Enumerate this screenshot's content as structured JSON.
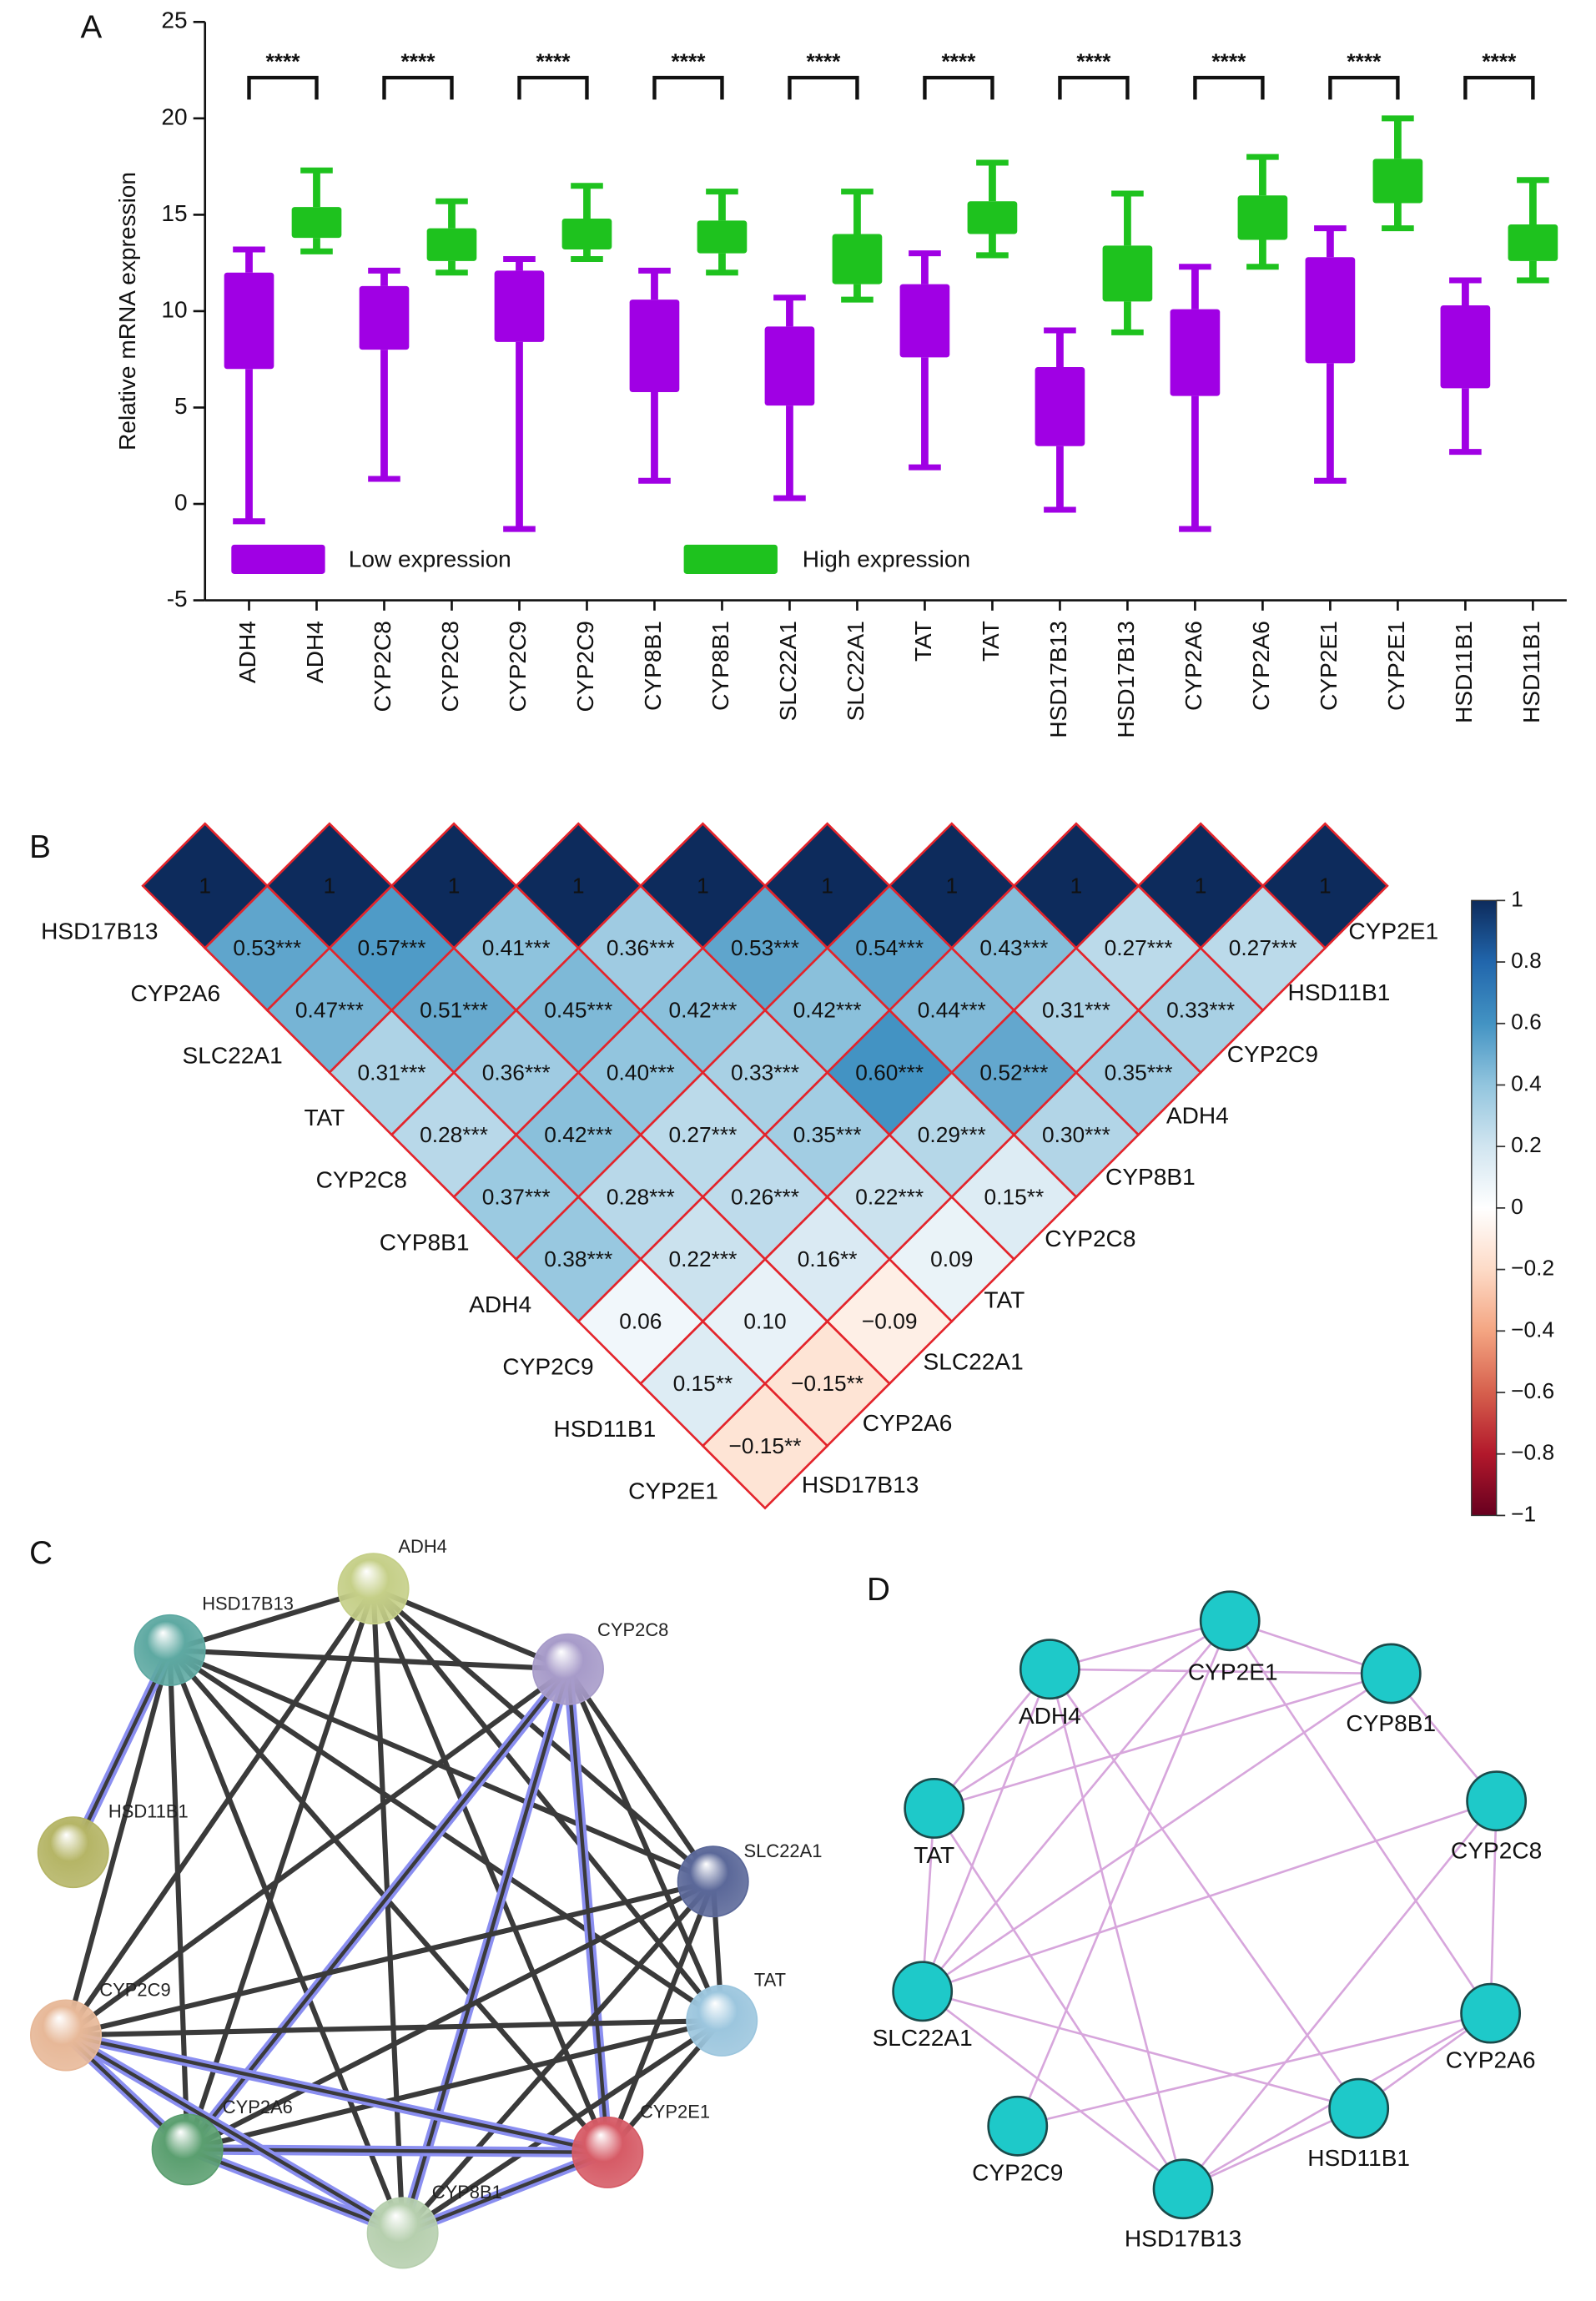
{
  "chart_data": [
    {
      "type": "box",
      "panel": "A",
      "ylabel": "Relative mRNA expression",
      "categories": [
        "ADH4",
        "ADH4",
        "CYP2C8",
        "CYP2C8",
        "CYP2C9",
        "CYP2C9",
        "CYP8B1",
        "CYP8B1",
        "SLC22A1",
        "SLC22A1",
        "TAT",
        "TAT",
        "HSD17B13",
        "HSD17B13",
        "CYP2A6",
        "CYP2A6",
        "CYP2E1",
        "CYP2E1",
        "HSD11B1",
        "HSD11B1"
      ],
      "boxes": [
        {
          "min": -0.9,
          "q1": 7.0,
          "q3": 12.0,
          "max": 13.2
        },
        {
          "min": 13.1,
          "q1": 13.8,
          "q3": 15.4,
          "max": 17.3
        },
        {
          "min": 1.3,
          "q1": 8.0,
          "q3": 11.3,
          "max": 12.1
        },
        {
          "min": 12.0,
          "q1": 12.6,
          "q3": 14.3,
          "max": 15.7
        },
        {
          "min": -1.3,
          "q1": 8.4,
          "q3": 12.1,
          "max": 12.7
        },
        {
          "min": 12.7,
          "q1": 13.2,
          "q3": 14.8,
          "max": 16.5
        },
        {
          "min": 1.2,
          "q1": 5.8,
          "q3": 10.6,
          "max": 12.1
        },
        {
          "min": 12.0,
          "q1": 13.0,
          "q3": 14.7,
          "max": 16.2
        },
        {
          "min": 0.3,
          "q1": 5.1,
          "q3": 9.2,
          "max": 10.7
        },
        {
          "min": 10.6,
          "q1": 11.4,
          "q3": 14.0,
          "max": 16.2
        },
        {
          "min": 1.9,
          "q1": 7.6,
          "q3": 11.4,
          "max": 13.0
        },
        {
          "min": 12.9,
          "q1": 14.0,
          "q3": 15.7,
          "max": 17.7
        },
        {
          "min": -0.3,
          "q1": 3.0,
          "q3": 7.1,
          "max": 9.0
        },
        {
          "min": 8.9,
          "q1": 10.5,
          "q3": 13.4,
          "max": 16.1
        },
        {
          "min": -1.3,
          "q1": 5.6,
          "q3": 10.1,
          "max": 12.3
        },
        {
          "min": 12.3,
          "q1": 13.7,
          "q3": 16.0,
          "max": 18.0
        },
        {
          "min": 1.2,
          "q1": 7.3,
          "q3": 12.8,
          "max": 14.3
        },
        {
          "min": 14.3,
          "q1": 15.6,
          "q3": 17.9,
          "max": 20.0
        },
        {
          "min": 2.7,
          "q1": 6.0,
          "q3": 10.3,
          "max": 11.6
        },
        {
          "min": 11.6,
          "q1": 12.6,
          "q3": 14.5,
          "max": 16.8
        }
      ],
      "series": [
        {
          "name": "Low expression",
          "color": "#a000e4"
        },
        {
          "name": "High expression",
          "color": "#1ec21e"
        }
      ],
      "annotations": [
        "****",
        "****",
        "****",
        "****",
        "****",
        "****",
        "****",
        "****",
        "****",
        "****"
      ],
      "ylim": [
        -5,
        25
      ],
      "yticks": [
        -5,
        0,
        5,
        10,
        15,
        20,
        25
      ]
    },
    {
      "type": "heatmap",
      "panel": "B",
      "row_labels": [
        "HSD17B13",
        "CYP2A6",
        "SLC22A1",
        "TAT",
        "CYP2C8",
        "CYP8B1",
        "ADH4",
        "CYP2C9",
        "HSD11B1",
        "CYP2E1"
      ],
      "column_labels": [
        "CYP2E1",
        "HSD11B1",
        "CYP2C9",
        "ADH4",
        "CYP8B1",
        "CYP2C8",
        "TAT",
        "SLC22A1",
        "CYP2A6",
        "HSD17B13"
      ],
      "values": [
        [
          1,
          1,
          1,
          1,
          1,
          1,
          1,
          1,
          1,
          1
        ],
        [
          0.53,
          0.57,
          0.41,
          0.36,
          0.53,
          0.54,
          0.43,
          0.27,
          0.27
        ],
        [
          0.47,
          0.51,
          0.45,
          0.42,
          0.42,
          0.44,
          0.31,
          0.33
        ],
        [
          0.31,
          0.36,
          0.4,
          0.33,
          0.6,
          0.52,
          0.35
        ],
        [
          0.28,
          0.42,
          0.27,
          0.35,
          0.29,
          0.3
        ],
        [
          0.37,
          0.28,
          0.26,
          0.22,
          0.15
        ],
        [
          0.38,
          0.22,
          0.16,
          0.09
        ],
        [
          0.06,
          0.1,
          -0.09
        ],
        [
          0.15,
          -0.15
        ],
        [
          -0.15
        ]
      ],
      "value_labels": [
        [
          "1",
          "1",
          "1",
          "1",
          "1",
          "1",
          "1",
          "1",
          "1",
          "1"
        ],
        [
          "0.53***",
          "0.57***",
          "0.41***",
          "0.36***",
          "0.53***",
          "0.54***",
          "0.43***",
          "0.27***",
          "0.27***"
        ],
        [
          "0.47***",
          "0.51***",
          "0.45***",
          "0.42***",
          "0.42***",
          "0.44***",
          "0.31***",
          "0.33***"
        ],
        [
          "0.31***",
          "0.36***",
          "0.40***",
          "0.33***",
          "0.60***",
          "0.52***",
          "0.35***"
        ],
        [
          "0.28***",
          "0.42***",
          "0.27***",
          "0.35***",
          "0.29***",
          "0.30***"
        ],
        [
          "0.37***",
          "0.28***",
          "0.26***",
          "0.22***",
          "0.15**"
        ],
        [
          "0.38***",
          "0.22***",
          "0.16**",
          "0.09"
        ],
        [
          "0.06",
          "0.10",
          "−0.09"
        ],
        [
          "0.15**",
          "−0.15**"
        ],
        [
          "−0.15**"
        ]
      ],
      "colormap": [
        "#67001f",
        "#b2182b",
        "#d6604d",
        "#f4a582",
        "#fddbc7",
        "#ffffff",
        "#d1e5f0",
        "#92c5de",
        "#4393c3",
        "#2166ac",
        "#0d2b5c"
      ],
      "zlim": [
        -1,
        1
      ],
      "zticks": [
        1,
        0.8,
        0.6,
        0.4,
        0.2,
        0,
        {
          "value": -0.2,
          "label": "−0.2"
        },
        {
          "value": -0.4,
          "label": "−0.4"
        },
        {
          "value": -0.6,
          "label": "−0.6"
        },
        {
          "value": -0.8,
          "label": "−0.8"
        },
        {
          "value": -1,
          "label": "−1"
        }
      ]
    },
    {
      "type": "network",
      "panel": "C",
      "nodes": [
        {
          "label": "HSD17B13",
          "color": "#5ea9a2"
        },
        {
          "label": "ADH4",
          "color": "#c5cf88"
        },
        {
          "label": "CYP2C8",
          "color": "#a79bc9"
        },
        {
          "label": "SLC22A1",
          "color": "#5b6899"
        },
        {
          "label": "TAT",
          "color": "#9cc6de"
        },
        {
          "label": "CYP2E1",
          "color": "#d65b66"
        },
        {
          "label": "CYP8B1",
          "color": "#b6cfae"
        },
        {
          "label": "CYP2A6",
          "color": "#5b9f70"
        },
        {
          "label": "CYP2C9",
          "color": "#e7b898"
        },
        {
          "label": "HSD11B1",
          "color": "#b5b566"
        }
      ]
    },
    {
      "type": "network",
      "panel": "D",
      "color": "#1ec9c9",
      "nodes": [
        {
          "label": "CYP2E1"
        },
        {
          "label": "CYP8B1"
        },
        {
          "label": "ADH4"
        },
        {
          "label": "CYP2C8"
        },
        {
          "label": "TAT"
        },
        {
          "label": "SLC22A1"
        },
        {
          "label": "CYP2A6"
        },
        {
          "label": "HSD11B1"
        },
        {
          "label": "CYP2C9"
        },
        {
          "label": "HSD17B13"
        }
      ]
    }
  ]
}
